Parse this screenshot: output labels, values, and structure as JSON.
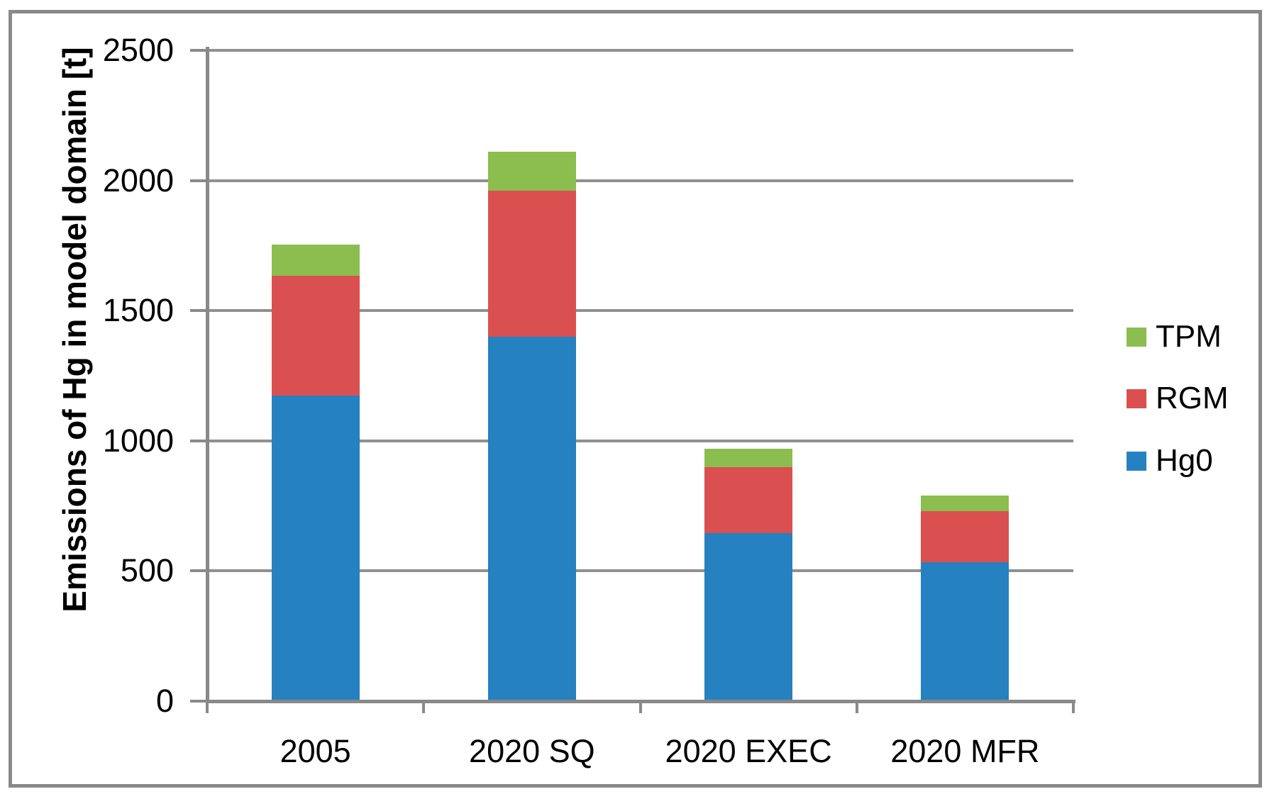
{
  "chart_data": {
    "type": "bar",
    "stacked": true,
    "title": "",
    "xlabel": "",
    "ylabel": "Emissions of Hg in model domain [t]",
    "categories": [
      "2005",
      "2020 SQ",
      "2020 EXEC",
      "2020 MFR"
    ],
    "series": [
      {
        "name": "Hg0",
        "color": "#2581BF",
        "values": [
          1175,
          1400,
          645,
          535
        ]
      },
      {
        "name": "RGM",
        "color": "#DA5050",
        "values": [
          460,
          560,
          255,
          195
        ]
      },
      {
        "name": "TPM",
        "color": "#8CBD4F",
        "values": [
          120,
          150,
          70,
          60
        ]
      }
    ],
    "ylim": [
      0,
      2500
    ],
    "ytick_step": 500,
    "ytick_labels": [
      "0",
      "500",
      "1000",
      "1500",
      "2000",
      "2500"
    ],
    "grid": "horizontal",
    "legend": {
      "position": "right",
      "entries": [
        "TPM",
        "RGM",
        "Hg0"
      ]
    }
  },
  "colors": {
    "background": "#FFFFFF",
    "border": "#898989",
    "axis": "#898989",
    "gridline": "#909090",
    "text": "#000000"
  }
}
